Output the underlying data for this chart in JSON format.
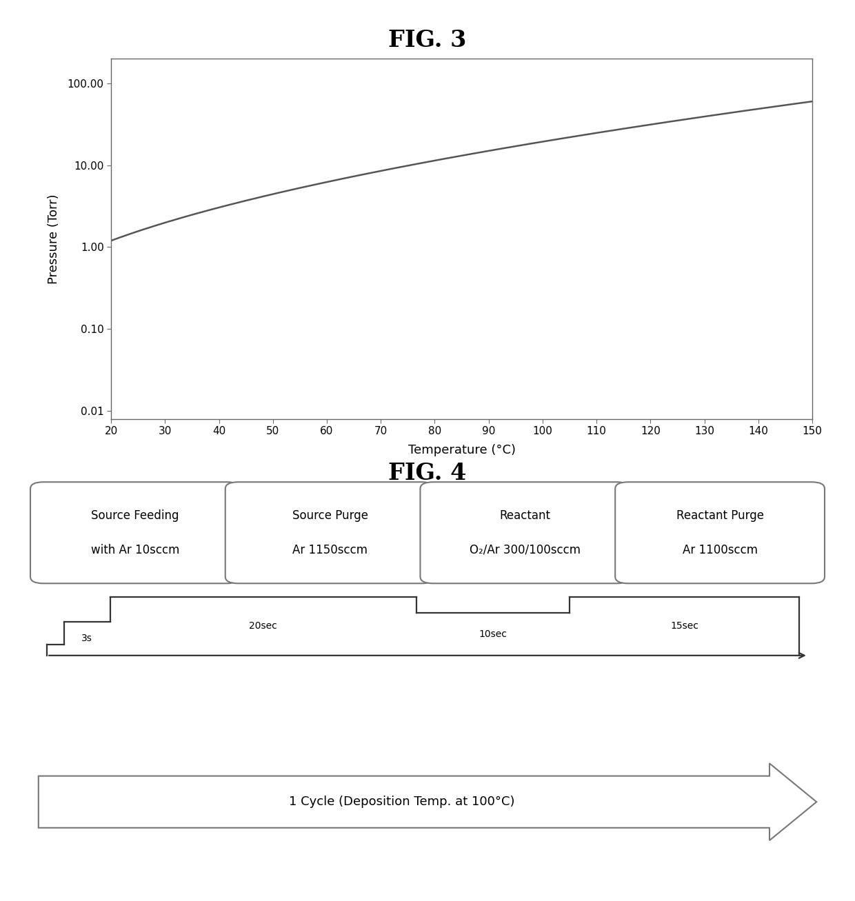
{
  "fig3_title": "FIG. 3",
  "fig4_title": "FIG. 4",
  "xlabel": "Temperature (°C)",
  "ylabel": "Pressure (Torr)",
  "x_ticks": [
    20,
    30,
    40,
    50,
    60,
    70,
    80,
    90,
    100,
    110,
    120,
    130,
    140,
    150
  ],
  "x_min": 20,
  "x_max": 150,
  "line_color": "#555555",
  "line_width": 1.8,
  "bg_color": "#ffffff",
  "fig4_boxes": [
    {
      "line1": "Source Feeding",
      "line2": "with Ar 10sccm"
    },
    {
      "line1": "Source Purge",
      "line2": "Ar 1150sccm"
    },
    {
      "line1": "Reactant",
      "line2": "O₂/Ar 300/100sccm"
    },
    {
      "line1": "Reactant Purge",
      "line2": "Ar 1100sccm"
    }
  ],
  "step_labels": [
    "3s",
    "20sec",
    "10sec",
    "15sec"
  ],
  "step_times": [
    3,
    20,
    10,
    15
  ],
  "cycle_label": "1 Cycle (Deposition Temp. at 100°C)"
}
